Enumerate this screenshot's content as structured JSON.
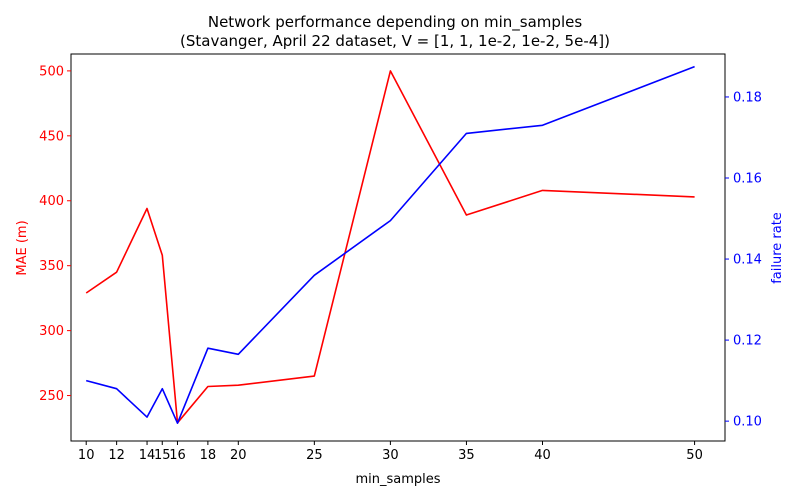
{
  "chart_data": {
    "type": "line",
    "title_line1": "Network performance depending on min_samples",
    "title_line2": "(Stavanger, April 22 dataset, V = [1, 1, 1e-2, 1e-2, 5e-4])",
    "xlabel": "min_samples",
    "ylabel_left": "MAE (m)",
    "ylabel_right": "failure rate",
    "x": [
      10,
      12,
      14,
      15,
      16,
      18,
      20,
      25,
      30,
      35,
      40,
      50
    ],
    "x_ticks": [
      "10",
      "12",
      "14",
      "15",
      "16",
      "18",
      "20",
      "25",
      "30",
      "35",
      "40",
      "50"
    ],
    "xlim": [
      9,
      52
    ],
    "y_left_ticks": [
      "250",
      "300",
      "350",
      "400",
      "450",
      "500"
    ],
    "y_left_tick_values": [
      250,
      300,
      350,
      400,
      450,
      500
    ],
    "ylim_left": [
      215,
      513
    ],
    "y_right_ticks": [
      "0.10",
      "0.12",
      "0.14",
      "0.16",
      "0.18"
    ],
    "y_right_tick_values": [
      0.1,
      0.12,
      0.14,
      0.16,
      0.18
    ],
    "ylim_right": [
      0.0951,
      0.1906
    ],
    "series": [
      {
        "axis": "left",
        "color": "#ff0000",
        "values": [
          329,
          345,
          394,
          358,
          229,
          257,
          258,
          265,
          500,
          389,
          408,
          403
        ]
      },
      {
        "axis": "right",
        "color": "#0000ff",
        "values": [
          0.11,
          0.108,
          0.101,
          0.108,
          0.0995,
          0.118,
          0.1165,
          0.136,
          0.1495,
          0.171,
          0.173,
          0.1875
        ]
      }
    ],
    "legend": "none",
    "grid": false
  }
}
